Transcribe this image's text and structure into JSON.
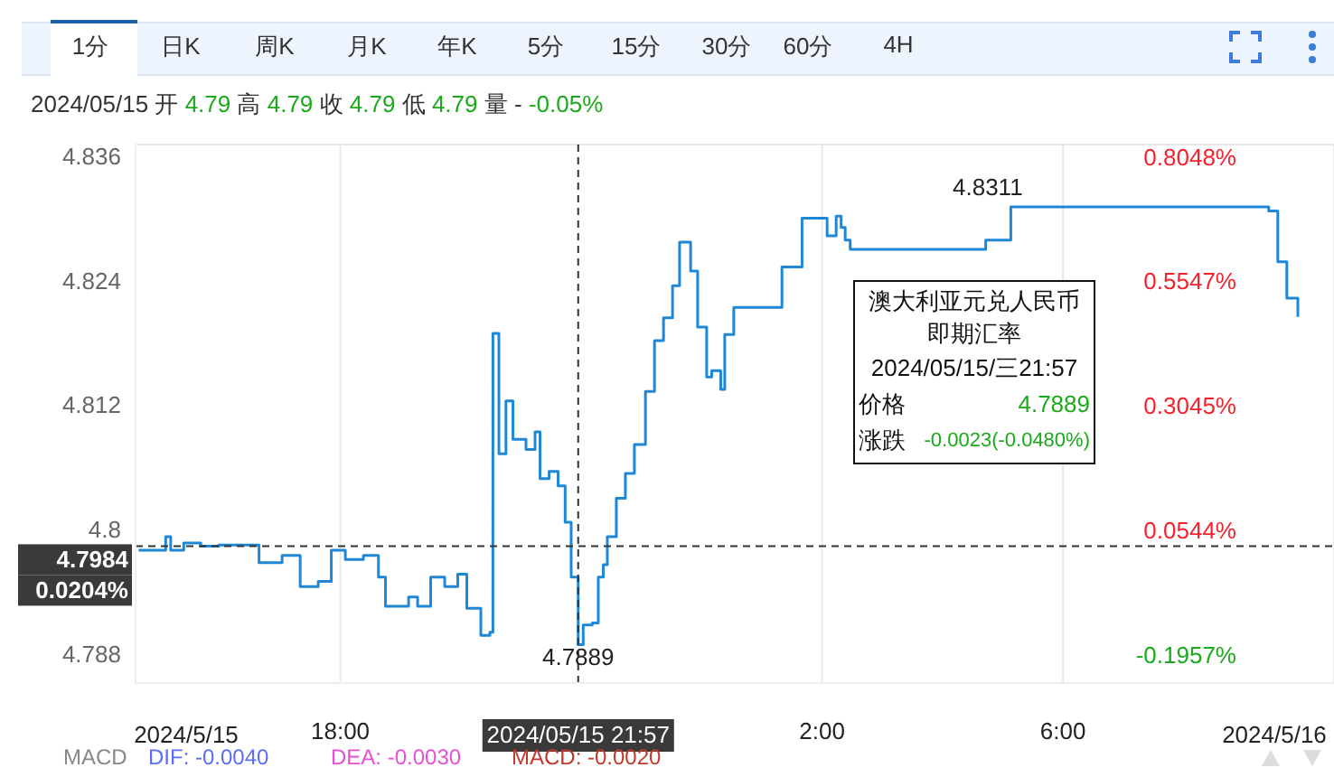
{
  "chart_data": {
    "type": "step",
    "subtitle": "2024/05/15 开 4.79 高 4.79 收 4.79 低 4.79 量 - -0.05%",
    "x": [
      "2024-05-15T14:39",
      "2024-05-15T15:06",
      "2024-05-15T15:11",
      "2024-05-15T15:24",
      "2024-05-15T15:41",
      "2024-05-15T15:59",
      "2024-05-15T16:30",
      "2024-05-15T16:39",
      "2024-05-15T17:02",
      "2024-05-15T17:20",
      "2024-05-15T17:38",
      "2024-05-15T17:51",
      "2024-05-15T18:05",
      "2024-05-15T18:23",
      "2024-05-15T18:38",
      "2024-05-15T18:45",
      "2024-05-15T19:08",
      "2024-05-15T19:17",
      "2024-05-15T19:30",
      "2024-05-15T19:44",
      "2024-05-15T19:57",
      "2024-05-15T20:06",
      "2024-05-15T20:20",
      "2024-05-15T20:29",
      "2024-05-15T20:32",
      "2024-05-15T20:38",
      "2024-05-15T20:45",
      "2024-05-15T20:52",
      "2024-05-15T21:05",
      "2024-05-15T21:14",
      "2024-05-15T21:19",
      "2024-05-15T21:28",
      "2024-05-15T21:37",
      "2024-05-15T21:44",
      "2024-05-15T21:50",
      "2024-05-15T21:57",
      "2024-05-15T22:02",
      "2024-05-15T22:11",
      "2024-05-15T22:17",
      "2024-05-15T22:22",
      "2024-05-15T22:26",
      "2024-05-15T22:35",
      "2024-05-15T22:44",
      "2024-05-15T22:53",
      "2024-05-15T23:04",
      "2024-05-15T23:13",
      "2024-05-15T23:22",
      "2024-05-15T23:31",
      "2024-05-15T23:38",
      "2024-05-15T23:49",
      "2024-05-15T23:56",
      "2024-05-16T00:05",
      "2024-05-16T00:10",
      "2024-05-16T00:19",
      "2024-05-16T00:23",
      "2024-05-16T00:32",
      "2024-05-16T01:20",
      "2024-05-16T01:29",
      "2024-05-16T01:40",
      "2024-05-16T01:47",
      "2024-05-16T02:05",
      "2024-05-16T02:14",
      "2024-05-16T02:19",
      "2024-05-16T02:23",
      "2024-05-16T02:28",
      "2024-05-16T04:43",
      "2024-05-16T05:08",
      "2024-05-16T09:25",
      "2024-05-16T09:34",
      "2024-05-16T09:43",
      "2024-05-16T09:54"
    ],
    "series": [
      {
        "color": "#1f88d6",
        "values": [
          4.798,
          4.7993,
          4.798,
          4.7987,
          4.7984,
          4.7985,
          4.7985,
          4.7968,
          4.7975,
          4.7945,
          4.795,
          4.798,
          4.7971,
          4.7975,
          4.7954,
          4.7926,
          4.7935,
          4.7926,
          4.7954,
          4.7945,
          4.7957,
          4.7924,
          4.7898,
          4.7901,
          4.8189,
          4.8073,
          4.8124,
          4.8087,
          4.8077,
          4.8094,
          4.8049,
          4.8056,
          4.8042,
          4.8007,
          4.7954,
          4.7889,
          4.7908,
          4.791,
          4.7954,
          4.7966,
          4.7993,
          4.803,
          4.8054,
          4.8082,
          4.8133,
          4.8182,
          4.8204,
          4.8235,
          4.8277,
          4.8249,
          4.8195,
          4.8147,
          4.8153,
          4.8135,
          4.8188,
          4.8214,
          4.8253,
          4.8253,
          4.83,
          4.83,
          4.8283,
          4.8302,
          4.8291,
          4.8279,
          4.827,
          4.8279,
          4.8311,
          4.8307,
          4.8258,
          4.8223,
          4.8205
        ]
      }
    ],
    "xlim": [
      "2024-05-15T14:36",
      "2024-05-16T10:30"
    ],
    "xticks": [
      {
        "value": "2024-05-15T18:00",
        "label": "18:00"
      },
      {
        "value": "2024-05-16T02:00",
        "label": "2:00"
      },
      {
        "value": "2024-05-16T06:00",
        "label": "6:00"
      }
    ],
    "ylim": [
      4.7852,
      4.8371
    ],
    "yticks": [
      4.788,
      4.8,
      4.812,
      4.824,
      4.836
    ],
    "y2lim": [
      -0.2541,
      0.8277
    ],
    "y2ticks": [
      {
        "value": -0.1957,
        "label": "-0.1957%"
      },
      {
        "value": 0.0544,
        "label": "0.0544%"
      },
      {
        "value": 0.3045,
        "label": "0.3045%"
      },
      {
        "value": 0.5547,
        "label": "0.5547%"
      },
      {
        "value": 0.8048,
        "label": "0.8048%"
      }
    ],
    "grid": true,
    "marker": "none",
    "line_style": "solid",
    "ref_lines": [
      {
        "axis": "x",
        "value": "2024-05-15T21:57",
        "label": "2024/05/15 21:57",
        "line_style": "dashed",
        "color": "#333333"
      },
      {
        "axis": "y",
        "value": 4.7984,
        "label": "4.7984\n0.0204%",
        "line_style": "dashed",
        "color": "#333333"
      }
    ],
    "annotations": [
      "1分",
      "日K",
      "周K",
      "月K",
      "年K",
      "5分",
      "15分",
      "30分",
      "60分",
      "4H",
      "澳大利亚元兑人民币即期汇率",
      "2024/05/15/三21:57",
      "价格",
      "4.7889",
      "涨跌",
      "-0.0023(-0.0480%)",
      "MACD",
      "DIF: -0.0040",
      "DEA: -0.0030",
      "MACD: -0.0020",
      "2024/5/15",
      "2024/5/16",
      "4.8311",
      {
        "text": "4.7889",
        "x": "2024-05-15T21:57",
        "y": 4.7889
      }
    ]
  }
}
